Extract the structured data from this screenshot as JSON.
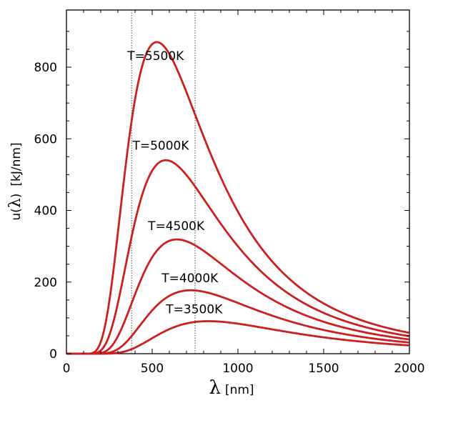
{
  "chart_data": {
    "type": "line",
    "title": "",
    "xlabel": {
      "symbol": "λ",
      "unit": "[nm]"
    },
    "ylabel": {
      "prefix": "u(",
      "symbol": "λ",
      "suffix": ")",
      "unit": "[kJ/nm]"
    },
    "xlim": [
      0,
      2000
    ],
    "ylim": [
      0,
      900
    ],
    "x_ticks": [
      0,
      500,
      1000,
      1500,
      2000
    ],
    "y_ticks": [
      0,
      200,
      400,
      600,
      800
    ],
    "reference_lines_x": [
      380,
      750
    ],
    "grid": false,
    "legend": "none",
    "curve_color": "#cc1f1f",
    "series": [
      {
        "name": "T=5500K",
        "temperature": 5500,
        "label": "T=5500K"
      },
      {
        "name": "T=5000K",
        "temperature": 5000,
        "label": "T=5000K"
      },
      {
        "name": "T=4500K",
        "temperature": 4500,
        "label": "T=4500K"
      },
      {
        "name": "T=4000K",
        "temperature": 4000,
        "label": "T=4000K"
      },
      {
        "name": "T=3500K",
        "temperature": 3500,
        "label": "T=3500K"
      }
    ],
    "peaks_approx": [
      {
        "temperature": 5500,
        "x": 527,
        "y": 870
      },
      {
        "temperature": 5000,
        "x": 580,
        "y": 535
      },
      {
        "temperature": 4500,
        "x": 645,
        "y": 320
      },
      {
        "temperature": 4000,
        "x": 725,
        "y": 178
      },
      {
        "temperature": 3500,
        "x": 830,
        "y": 90
      }
    ]
  }
}
